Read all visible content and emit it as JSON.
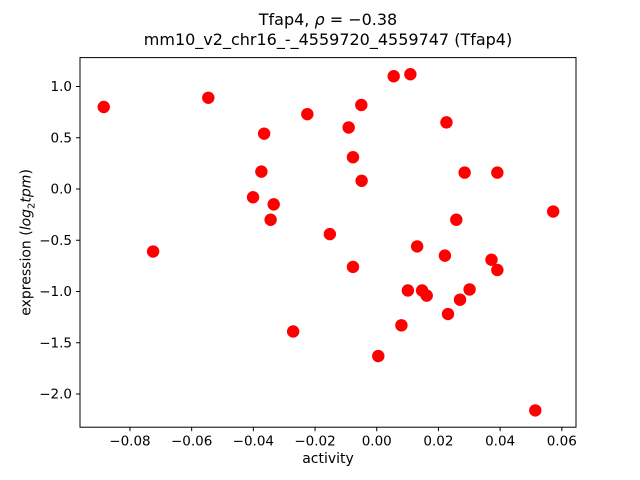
{
  "figure": {
    "title_parts": {
      "prefix": "Tfap4, ",
      "rho": "ρ",
      "eq": " = −0.38"
    },
    "subtitle": "mm10_v2_chr16_-_4559720_4559747 (Tfap4)",
    "ylabel_parts": {
      "prefix": "expression (",
      "log": "log",
      "sub": "2",
      "tpm": "tpm",
      "close": ")"
    }
  },
  "chart_data": {
    "type": "scatter",
    "title": "Tfap4, ρ = −0.38",
    "subtitle": "mm10_v2_chr16_-_4559720_4559747 (Tfap4)",
    "xlabel": "activity",
    "ylabel": "expression (log2tpm)",
    "xlim": [
      -0.0962,
      0.0646
    ],
    "ylim": [
      -2.324,
      1.282
    ],
    "xticks": [
      -0.08,
      -0.06,
      -0.04,
      -0.02,
      0.0,
      0.02,
      0.04,
      0.06
    ],
    "xtick_labels": [
      "−0.08",
      "−0.06",
      "−0.04",
      "−0.02",
      "0.00",
      "0.02",
      "0.04",
      "0.06"
    ],
    "yticks": [
      1.0,
      0.5,
      0.0,
      -0.5,
      -1.0,
      -1.5,
      -2.0
    ],
    "ytick_labels": [
      "1.0",
      "0.5",
      "0.0",
      "−0.5",
      "−1.0",
      "−1.5",
      "−2.0"
    ],
    "grid": false,
    "legend": false,
    "marker_color": "#ff0000",
    "marker_radius_px": 6.2,
    "points": [
      [
        -0.0885,
        0.8
      ],
      [
        -0.0725,
        -0.61
      ],
      [
        -0.0546,
        0.89
      ],
      [
        -0.0401,
        -0.08
      ],
      [
        -0.0374,
        0.17
      ],
      [
        -0.0365,
        0.54
      ],
      [
        -0.0344,
        -0.3
      ],
      [
        -0.0334,
        -0.15
      ],
      [
        -0.0271,
        -1.39
      ],
      [
        -0.0225,
        0.73
      ],
      [
        -0.0152,
        -0.44
      ],
      [
        -0.0091,
        0.6
      ],
      [
        -0.0077,
        0.31
      ],
      [
        -0.0077,
        -0.76
      ],
      [
        -0.005,
        0.82
      ],
      [
        -0.0049,
        0.08
      ],
      [
        0.0005,
        -1.63
      ],
      [
        0.0055,
        1.1
      ],
      [
        0.008,
        -1.33
      ],
      [
        0.0101,
        -0.99
      ],
      [
        0.0109,
        1.12
      ],
      [
        0.0131,
        -0.56
      ],
      [
        0.0147,
        -0.99
      ],
      [
        0.0162,
        -1.04
      ],
      [
        0.0221,
        -0.65
      ],
      [
        0.0226,
        0.65
      ],
      [
        0.0231,
        -1.22
      ],
      [
        0.0258,
        -0.3
      ],
      [
        0.027,
        -1.08
      ],
      [
        0.0285,
        0.16
      ],
      [
        0.0301,
        -0.98
      ],
      [
        0.0372,
        -0.69
      ],
      [
        0.0391,
        0.16
      ],
      [
        0.0391,
        -0.79
      ],
      [
        0.0514,
        -2.16
      ],
      [
        0.0572,
        -0.22
      ]
    ]
  }
}
